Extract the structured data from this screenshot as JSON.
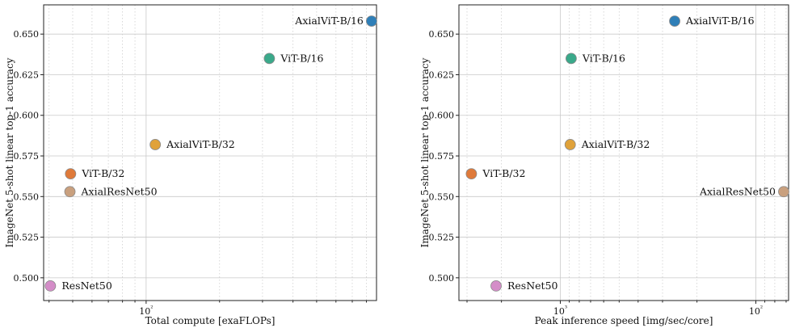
{
  "chart_data": [
    {
      "type": "scatter",
      "xlabel": "Total compute [exaFLOPs]",
      "ylabel": "ImageNet 5-shot linear top-1 accuracy",
      "xscale": "log",
      "xlim": [
        38,
        880
      ],
      "ylim": [
        0.486,
        0.668
      ],
      "x_major_ticks": [
        {
          "value": 100,
          "label": "10²"
        }
      ],
      "y_ticks": [
        0.5,
        0.525,
        0.55,
        0.575,
        0.6,
        0.625,
        0.65
      ],
      "y_tick_labels": [
        "0.500",
        "0.525",
        "0.550",
        "0.575",
        "0.600",
        "0.625",
        "0.650"
      ],
      "grid": true,
      "points": [
        {
          "label": "AxialViT-B/16",
          "x": 840,
          "y": 0.658,
          "color": "#2f7fb8",
          "label_side": "left"
        },
        {
          "label": "ViT-B/16",
          "x": 320,
          "y": 0.635,
          "color": "#3aa98a",
          "label_side": "right"
        },
        {
          "label": "AxialViT-B/32",
          "x": 109,
          "y": 0.582,
          "color": "#e0a23a",
          "label_side": "right"
        },
        {
          "label": "ViT-B/32",
          "x": 49,
          "y": 0.564,
          "color": "#df7a3a",
          "label_side": "right"
        },
        {
          "label": "AxialResNet50",
          "x": 48.7,
          "y": 0.553,
          "color": "#c9a07e",
          "label_side": "right"
        },
        {
          "label": "ResNet50",
          "x": 40.5,
          "y": 0.495,
          "color": "#d48dc8",
          "label_side": "right"
        }
      ]
    },
    {
      "type": "scatter",
      "xlabel": "Peak inference speed [img/sec/core]",
      "ylabel": "ImageNet 5-shot linear top-1 accuracy",
      "xscale": "log",
      "x_inverted": true,
      "xlim": [
        3300,
        68
      ],
      "ylim": [
        0.486,
        0.668
      ],
      "x_major_ticks": [
        {
          "value": 1000,
          "label": "10³"
        },
        {
          "value": 100,
          "label": "10²"
        }
      ],
      "y_ticks": [
        0.5,
        0.525,
        0.55,
        0.575,
        0.6,
        0.625,
        0.65
      ],
      "y_tick_labels": [
        "0.500",
        "0.525",
        "0.550",
        "0.575",
        "0.600",
        "0.625",
        "0.650"
      ],
      "grid": true,
      "points": [
        {
          "label": "AxialViT-B/16",
          "x": 260,
          "y": 0.658,
          "color": "#2f7fb8",
          "label_side": "right"
        },
        {
          "label": "ViT-B/16",
          "x": 880,
          "y": 0.635,
          "color": "#3aa98a",
          "label_side": "right"
        },
        {
          "label": "AxialViT-B/32",
          "x": 890,
          "y": 0.582,
          "color": "#e0a23a",
          "label_side": "right"
        },
        {
          "label": "ViT-B/32",
          "x": 2850,
          "y": 0.564,
          "color": "#df7a3a",
          "label_side": "right"
        },
        {
          "label": "AxialResNet50",
          "x": 72,
          "y": 0.553,
          "color": "#c9a07e",
          "label_side": "left"
        },
        {
          "label": "ResNet50",
          "x": 2130,
          "y": 0.495,
          "color": "#d48dc8",
          "label_side": "right"
        }
      ]
    }
  ]
}
